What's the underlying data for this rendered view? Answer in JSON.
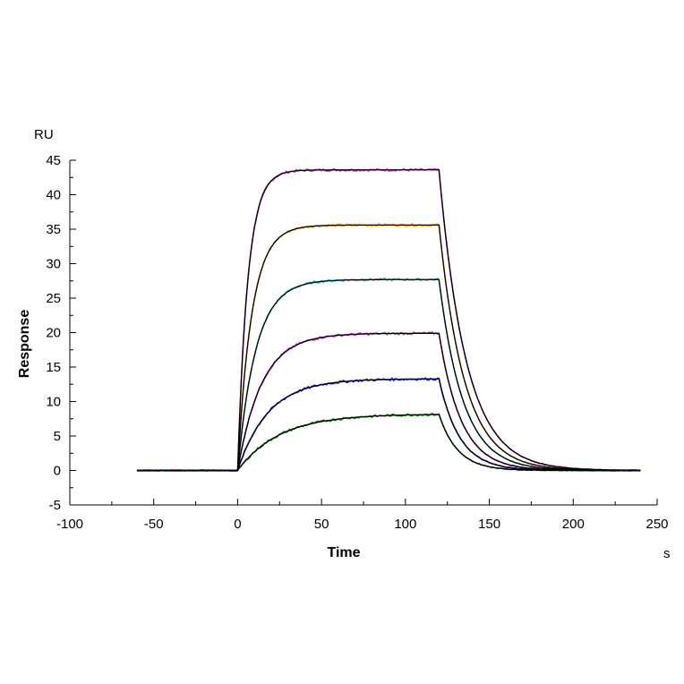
{
  "chart_data": {
    "type": "line",
    "title": "",
    "xlabel": "Time",
    "ylabel": "Response",
    "x_unit": "s",
    "y_unit": "RU",
    "xlim": [
      -100,
      250
    ],
    "ylim": [
      -5,
      45
    ],
    "x_ticks": [
      -100,
      -50,
      0,
      50,
      100,
      150,
      200,
      250
    ],
    "y_ticks": [
      -5,
      0,
      5,
      10,
      15,
      20,
      25,
      30,
      35,
      40,
      45
    ],
    "grid": false,
    "legend": "none",
    "baseline_start": -60,
    "injection_start": 0,
    "injection_end": 120,
    "data_end": 240,
    "association_rate": [
      0.165,
      0.12,
      0.092,
      0.07,
      0.055,
      0.04
    ],
    "dissociation_rate": [
      0.062,
      0.066,
      0.07,
      0.076,
      0.082,
      0.09
    ],
    "series": [
      {
        "plateau": 43.6,
        "data_color": "#cc33cc",
        "fit_color": "#000000"
      },
      {
        "plateau": 35.6,
        "data_color": "#ffa500",
        "fit_color": "#000000"
      },
      {
        "plateau": 27.7,
        "data_color": "#22cccc",
        "fit_color": "#000000"
      },
      {
        "plateau": 19.9,
        "data_color": "#dd22dd",
        "fit_color": "#000000"
      },
      {
        "plateau": 13.3,
        "data_color": "#2222ee",
        "fit_color": "#000000"
      },
      {
        "plateau": 8.2,
        "data_color": "#118811",
        "fit_color": "#000000"
      }
    ]
  }
}
